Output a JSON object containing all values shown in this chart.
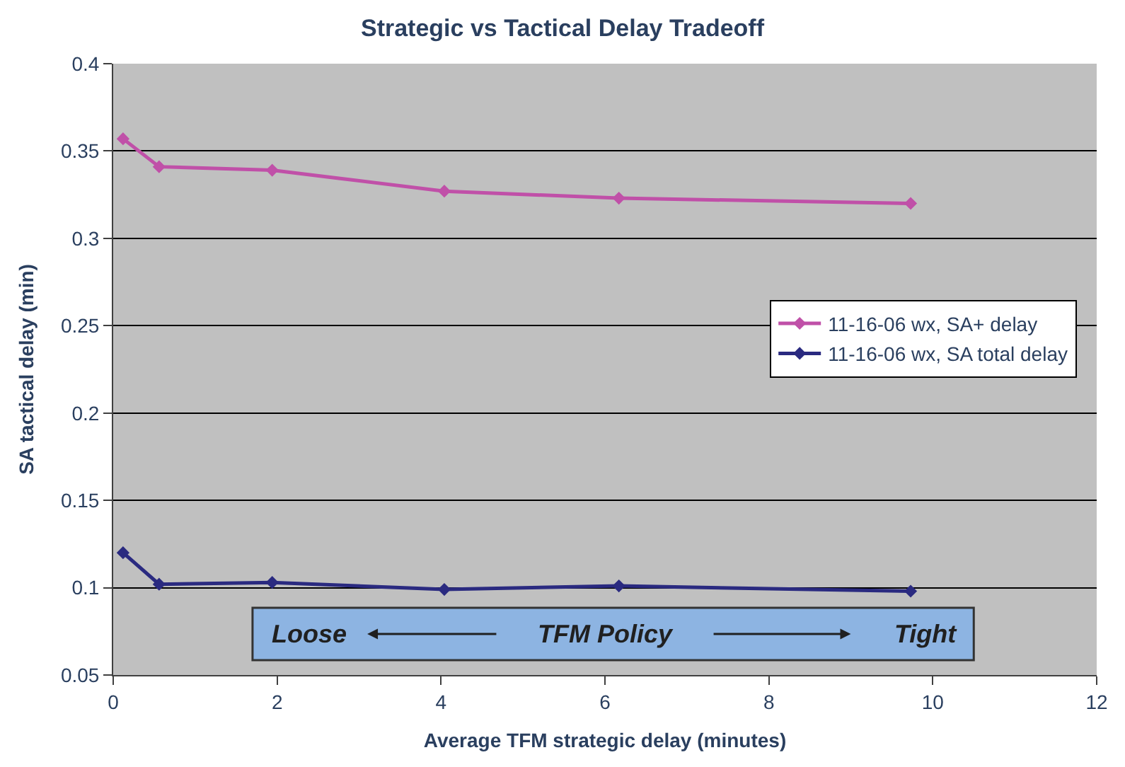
{
  "chart_data": {
    "type": "line",
    "title": "Strategic vs Tactical Delay Tradeoff",
    "xlabel": "Average TFM strategic delay (minutes)",
    "ylabel": "SA tactical delay (min)",
    "x": [
      0.12,
      0.56,
      1.94,
      4.04,
      6.17,
      9.73
    ],
    "series": [
      {
        "name": "11-16-06 wx, SA+ delay",
        "color": "#c050a8",
        "values": [
          0.357,
          0.341,
          0.339,
          0.327,
          0.323,
          0.32
        ]
      },
      {
        "name": "11-16-06 wx, SA total delay",
        "color": "#2a2a80",
        "values": [
          0.12,
          0.102,
          0.103,
          0.099,
          0.101,
          0.098
        ]
      }
    ],
    "xlim": [
      0,
      12
    ],
    "xticks": [
      0,
      2,
      4,
      6,
      8,
      10,
      12
    ],
    "ylim": [
      0.05,
      0.4
    ],
    "yticks": [
      0.05,
      0.1,
      0.15,
      0.2,
      0.25,
      0.3,
      0.35,
      0.4
    ],
    "grid": "y",
    "legend": "right",
    "marker": "diamond",
    "line_style": "solid",
    "annotations": [
      "Loose",
      "TFM Policy",
      "Tight"
    ]
  }
}
